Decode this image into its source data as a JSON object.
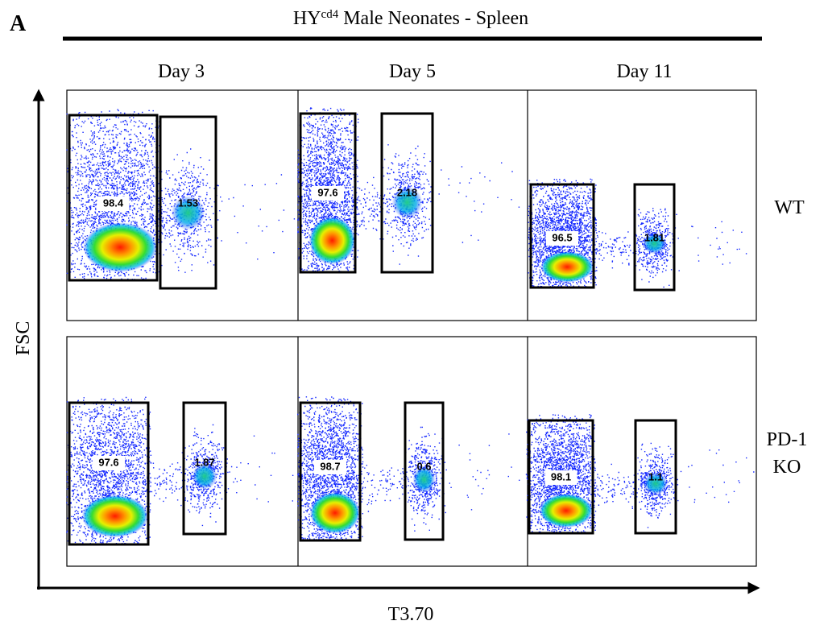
{
  "panel_label": "A",
  "title": {
    "text": "HY",
    "superscript": "cd4",
    "rest": " Male Neonates - Spleen"
  },
  "columns": [
    "Day 3",
    "Day 5",
    "Day 11"
  ],
  "rows": [
    {
      "label": [
        "WT"
      ],
      "gates": [
        [
          "98.4",
          "1.53"
        ],
        [
          "97.6",
          "2.18"
        ],
        [
          "96.5",
          "1.81"
        ]
      ]
    },
    {
      "label": [
        "PD-1",
        "KO"
      ],
      "gates": [
        [
          "97.6",
          "1.87"
        ],
        [
          "98.7",
          "0.6"
        ],
        [
          "98.1",
          "1.1"
        ]
      ]
    }
  ],
  "y_axis_label": "FSC",
  "x_axis_label": "T3.70"
}
